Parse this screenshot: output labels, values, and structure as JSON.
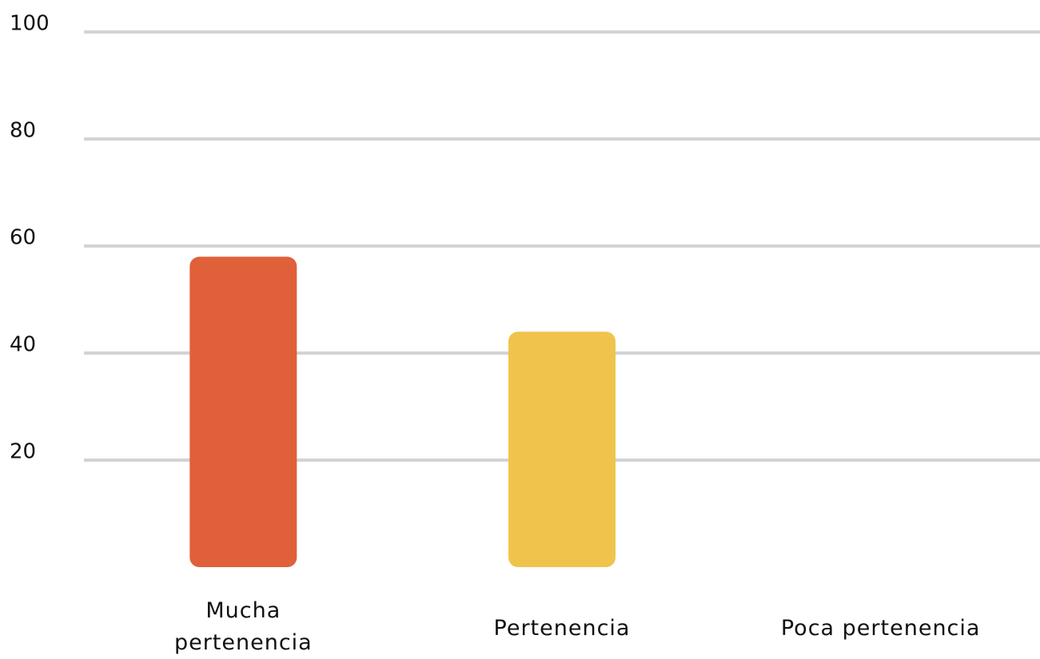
{
  "chart_data": {
    "type": "bar",
    "categories": [
      "Mucha pertenencia",
      "Pertenencia",
      "Poca pertenencia"
    ],
    "values": [
      58,
      44,
      0
    ],
    "colors": [
      "#e0603a",
      "#f0c44c",
      "#d9d9d9"
    ],
    "ylim": [
      0,
      100
    ],
    "yticks": [
      20,
      40,
      60,
      80,
      100
    ],
    "grid": true
  }
}
